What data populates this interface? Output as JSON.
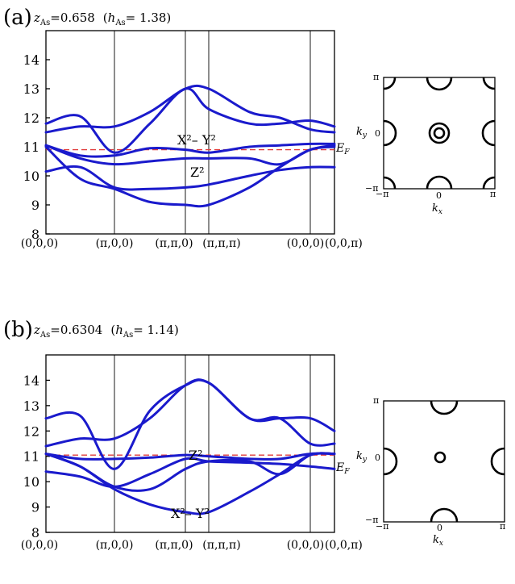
{
  "panels": [
    {
      "id": "a",
      "label": "(a)",
      "z_sym": "z",
      "z_sub": "As",
      "z_val": "=0.658",
      "h_open": "(",
      "h_sym": "h",
      "h_sub": "As",
      "h_val": "= 1.38)",
      "orbital_upper": "X²– Y²",
      "orbital_lower": "Z²",
      "ef_label": "E",
      "ef_sub": "F",
      "colors": {
        "bands": "#1a1acc",
        "fermi_level": "#e03c3c",
        "fermi_surface": "#000000"
      },
      "chart_data": {
        "type": "line",
        "ylim": [
          8,
          15
        ],
        "yticks": [
          "8",
          "9",
          "10",
          "11",
          "12",
          "13",
          "14"
        ],
        "x_ticks": [
          "(0,0,0)",
          "(π,0,0)",
          "(π,π,0)",
          "(π,π,π)",
          "(0,0,0)",
          "(0,0,π)"
        ],
        "fermi_level": 10.9,
        "series": [
          {
            "values": [
              11.05,
              10.7,
              10.7,
              10.95,
              10.9,
              10.8,
              11.0,
              11.05,
              11.1,
              11.1
            ]
          },
          {
            "values": [
              11.0,
              9.9,
              9.55,
              9.1,
              9.0,
              9.0,
              9.6,
              10.3,
              10.9,
              11.0
            ]
          },
          {
            "values": [
              10.15,
              10.3,
              9.6,
              9.55,
              9.6,
              9.7,
              10.0,
              10.2,
              10.3,
              10.3
            ]
          },
          {
            "values": [
              11.05,
              10.6,
              10.4,
              10.5,
              10.6,
              10.6,
              10.6,
              10.4,
              10.9,
              11.05
            ]
          },
          {
            "values": [
              11.5,
              11.7,
              11.7,
              12.2,
              13.0,
              13.0,
              12.2,
              12.0,
              11.6,
              11.5
            ]
          },
          {
            "values": [
              11.8,
              12.05,
              10.8,
              11.8,
              13.0,
              12.3,
              11.8,
              11.8,
              11.9,
              11.7
            ]
          }
        ]
      },
      "fermi_surface": {
        "x_label": "k",
        "x_sub": "x",
        "y_label": "k",
        "y_sub": "y",
        "ticks": {
          "pi": "π",
          "neg_pi": "−π",
          "zero": "0"
        }
      }
    },
    {
      "id": "b",
      "label": "(b)",
      "z_sym": "z",
      "z_sub": "As",
      "z_val": "=0.6304",
      "h_open": "(",
      "h_sym": "h",
      "h_sub": "As",
      "h_val": "= 1.14)",
      "orbital_upper": "Z²",
      "orbital_lower": "X²– Y²",
      "ef_label": "E",
      "ef_sub": "F",
      "colors": {
        "bands": "#1a1acc",
        "fermi_level": "#e03c3c",
        "fermi_surface": "#000000"
      },
      "chart_data": {
        "type": "line",
        "ylim": [
          8,
          15
        ],
        "yticks": [
          "8",
          "9",
          "10",
          "11",
          "12",
          "13",
          "14"
        ],
        "x_ticks": [
          "(0,0,0)",
          "(π,0,0)",
          "(π,π,0)",
          "(π,π,π)",
          "(0,0,0)",
          "(0,0,π)"
        ],
        "fermi_level": 11.05,
        "series": [
          {
            "values": [
              11.1,
              10.9,
              10.9,
              10.95,
              11.05,
              11.0,
              10.9,
              10.9,
              11.1,
              11.1
            ]
          },
          {
            "values": [
              11.1,
              10.6,
              9.7,
              9.1,
              8.8,
              8.8,
              9.6,
              10.3,
              11.05,
              11.1
            ]
          },
          {
            "values": [
              10.4,
              10.2,
              9.8,
              10.3,
              10.9,
              10.8,
              10.75,
              10.7,
              10.6,
              10.5
            ]
          },
          {
            "values": [
              11.1,
              10.6,
              9.8,
              9.7,
              10.5,
              10.8,
              10.8,
              10.3,
              11.05,
              11.1
            ]
          },
          {
            "values": [
              11.4,
              11.7,
              11.7,
              12.5,
              13.8,
              13.9,
              12.5,
              12.5,
              11.5,
              11.5
            ]
          },
          {
            "values": [
              12.5,
              12.6,
              10.5,
              12.8,
              13.8,
              13.9,
              12.5,
              12.5,
              12.5,
              12.0
            ]
          }
        ]
      },
      "fermi_surface": {
        "x_label": "k",
        "x_sub": "x",
        "y_label": "k",
        "y_sub": "y",
        "ticks": {
          "pi": "π",
          "neg_pi": "−π",
          "zero": "0"
        }
      }
    }
  ]
}
